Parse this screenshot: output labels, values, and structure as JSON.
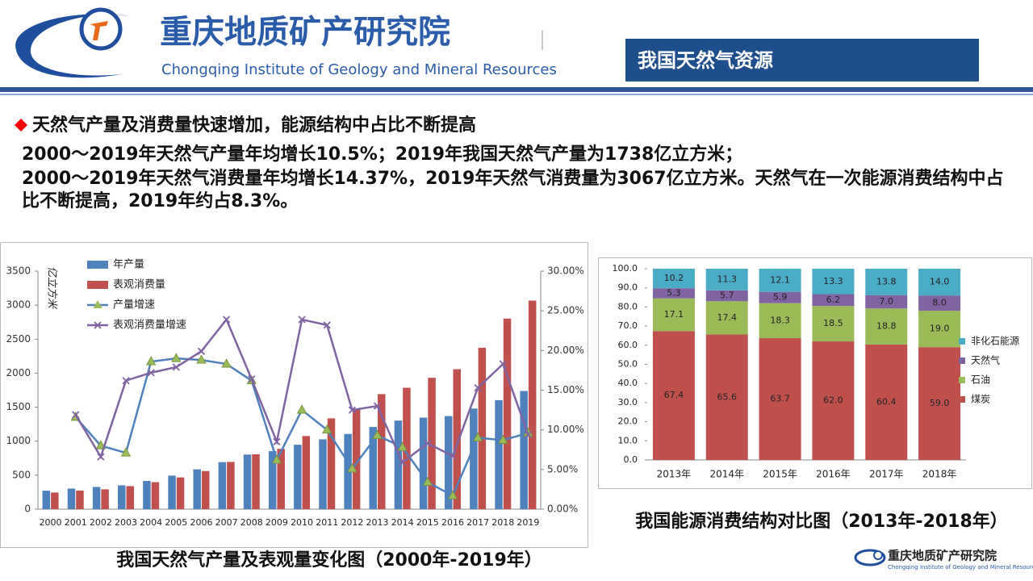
{
  "header": {
    "org_name": "重庆地质矿产研究院",
    "org_name_en": "Chongqing Institute of Geology and Mineral Resources",
    "section": "我国天然气资源"
  },
  "body": {
    "heading": "天然气产量及消费量快速增加，能源结构中占比不断提高",
    "lines": [
      "2000～2019年天然气产量年均增长10.5%；2019年我国天然气产量为1738亿立方米；",
      "2000～2019年天然气消费量年均增长14.37%，2019年天然气消费量为3067亿立方米。天然气在一次能源消费结构中占比不断提高，2019年约占8.3%。"
    ]
  },
  "chart_data": [
    {
      "type": "combo",
      "title": "我国天然气产量及表观量变化图（2000年-2019年）",
      "y_label": "亿立方米",
      "categories": [
        "2000",
        "2001",
        "2002",
        "2003",
        "2004",
        "2005",
        "2006",
        "2007",
        "2008",
        "2009",
        "2010",
        "2011",
        "2012",
        "2013",
        "2014",
        "2015",
        "2016",
        "2017",
        "2018",
        "2019"
      ],
      "ylim": [
        0,
        3500
      ],
      "yticks": [
        0,
        500,
        1000,
        1500,
        2000,
        2500,
        3000,
        3500
      ],
      "y2lim": [
        0,
        30
      ],
      "y2ticks": [
        {
          "value": 0,
          "label": "0.00%"
        },
        {
          "value": 5,
          "label": "5.00%"
        },
        {
          "value": 10,
          "label": "10.00%"
        },
        {
          "value": 15,
          "label": "15.00%"
        },
        {
          "value": 20,
          "label": "20.00%"
        },
        {
          "value": 25,
          "label": "25.00%"
        },
        {
          "value": 30,
          "label": "30.00%"
        }
      ],
      "grid": false,
      "series": [
        {
          "name": "年产量",
          "kind": "bar",
          "color": "#4f81bd",
          "values": [
            272,
            303,
            327,
            350,
            415,
            493,
            586,
            692,
            803,
            853,
            948,
            1027,
            1106,
            1209,
            1302,
            1346,
            1369,
            1480,
            1603,
            1738
          ]
        },
        {
          "name": "表观消费量",
          "kind": "bar",
          "color": "#c0504d",
          "values": [
            245,
            274,
            292,
            339,
            397,
            467,
            561,
            695,
            807,
            887,
            1075,
            1335,
            1463,
            1692,
            1785,
            1932,
            2058,
            2373,
            2803,
            3067
          ]
        },
        {
          "name": "产量增速",
          "kind": "line",
          "axis": "y2",
          "color": "#4f81bd",
          "marker": "triangle",
          "marker_color": "#9bbb59",
          "values": [
            null,
            11.6,
            8.0,
            7.1,
            18.6,
            19.0,
            18.8,
            18.3,
            16.2,
            6.2,
            12.5,
            10.0,
            5.1,
            9.3,
            7.8,
            3.4,
            1.7,
            9.0,
            8.7,
            9.6
          ]
        },
        {
          "name": "表观消费量增速",
          "kind": "line",
          "axis": "y2",
          "color": "#8064a2",
          "marker": "x",
          "marker_color": "#8064a2",
          "values": [
            null,
            11.9,
            6.6,
            16.2,
            17.2,
            17.9,
            19.9,
            23.9,
            16.4,
            8.5,
            23.9,
            23.2,
            12.5,
            13.0,
            5.9,
            8.3,
            6.7,
            15.3,
            18.3,
            9.4
          ]
        }
      ]
    },
    {
      "type": "stacked",
      "title": "我国能源消费结构对比图（2013年-2018年）",
      "categories": [
        "2013年",
        "2014年",
        "2015年",
        "2016年",
        "2017年",
        "2018年"
      ],
      "ylim": [
        0,
        100
      ],
      "yticks": [
        {
          "value": 0,
          "label": "0.0"
        },
        {
          "value": 10,
          "label": "10.0"
        },
        {
          "value": 20,
          "label": "20.0"
        },
        {
          "value": 30,
          "label": "30.0"
        },
        {
          "value": 40,
          "label": "40.0"
        },
        {
          "value": 50,
          "label": "50.0"
        },
        {
          "value": 60,
          "label": "60.0"
        },
        {
          "value": 70,
          "label": "70.0"
        },
        {
          "value": 80,
          "label": "80.0"
        },
        {
          "value": 90,
          "label": "90.0"
        },
        {
          "value": 100,
          "label": "100.0"
        }
      ],
      "grid": false,
      "series": [
        {
          "name": "煤炭",
          "color": "#c0504d",
          "values": [
            67.4,
            65.6,
            63.7,
            62,
            60.4,
            59
          ],
          "value_labels": [
            "67.4",
            "65.6",
            "63.7",
            "62.0",
            "60.4",
            "59.0"
          ]
        },
        {
          "name": "石油",
          "color": "#9bbb59",
          "values": [
            17.1,
            17.4,
            18.3,
            18.5,
            18.8,
            19
          ],
          "value_labels": [
            "17.1",
            "17.4",
            "18.3",
            "18.5",
            "18.8",
            "19.0"
          ]
        },
        {
          "name": "天然气",
          "color": "#8064a2",
          "values": [
            5.3,
            5.7,
            5.9,
            6.2,
            7,
            8
          ],
          "value_labels": [
            "5.3",
            "5.7",
            "5.9",
            "6.2",
            "7.0",
            "8.0"
          ]
        },
        {
          "name": "非化石能源",
          "color": "#4bacc6",
          "values": [
            10.2,
            11.3,
            12.1,
            13.3,
            13.8,
            14
          ],
          "value_labels": [
            "10.2",
            "11.3",
            "12.1",
            "13.3",
            "13.8",
            "14.0"
          ]
        }
      ]
    }
  ],
  "footer": {
    "org_name": "重庆地质矿产研究院",
    "org_name_en": "Chongqing Institute of Geology and Mineral Resources"
  }
}
